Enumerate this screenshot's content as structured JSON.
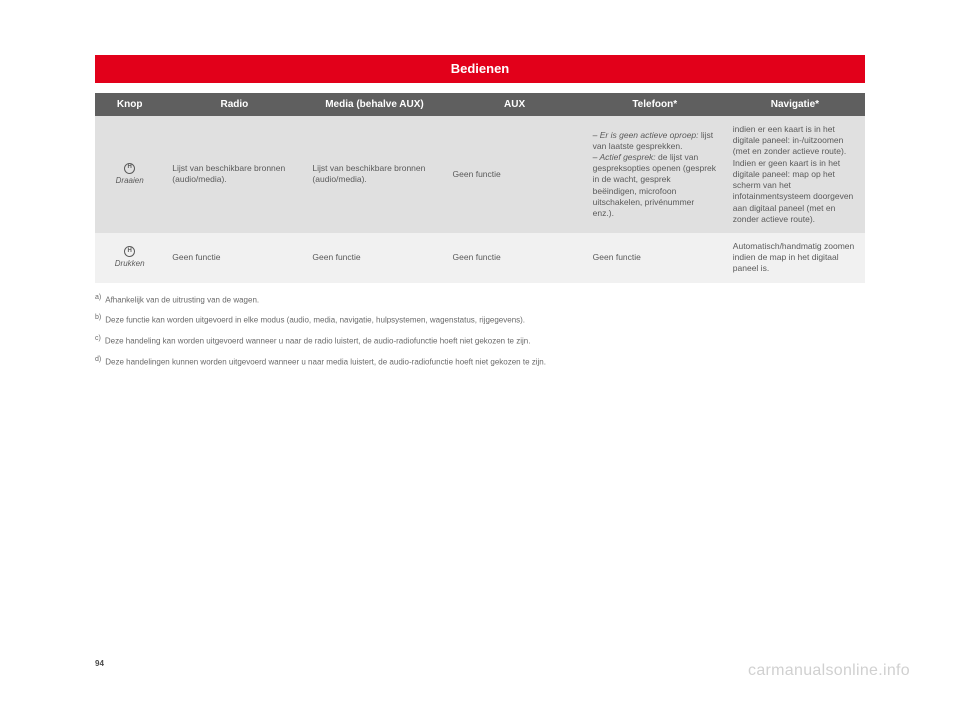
{
  "banner": {
    "title": "Bedienen"
  },
  "table": {
    "headers": {
      "knop": "Knop",
      "radio": "Radio",
      "media": "Media (behalve AUX)",
      "aux": "AUX",
      "telefoon": "Telefoon*",
      "navigatie": "Navigatie*"
    },
    "rows": [
      {
        "knop_action": "Draaien",
        "radio": "Lijst van beschikbare bronnen (audio/media).",
        "media": "Lijst van beschikbare bronnen (audio/media).",
        "aux": "Geen functie",
        "telefoon_line1": "– Er is geen actieve oproep:",
        "telefoon_line2": "lijst van laatste gesprekken.",
        "telefoon_line3": "– Actief gesprek:",
        "telefoon_line4": " de lijst van gespreksopties openen (gesprek in de wacht, gesprek beëindigen, microfoon uitschakelen, privénummer enz.).",
        "navigatie": "indien er een kaart is in het digitale paneel: in-/uitzoomen (met en zonder actieve route).\nIndien er geen kaart is in het digitale paneel: map op het scherm van het infotainmentsysteem doorgeven aan digitaal paneel (met en zonder actieve route)."
      },
      {
        "knop_action": "Drukken",
        "radio": "Geen functie",
        "media": "Geen functie",
        "aux": "Geen functie",
        "telefoon": "Geen functie",
        "navigatie": "Automatisch/handmatig zoomen indien de map in het digitaal paneel is."
      }
    ]
  },
  "footnotes": {
    "a": "Afhankelijk van de uitrusting van de wagen.",
    "b": "Deze functie kan worden uitgevoerd in elke modus (audio, media, navigatie, hulpsystemen, wagenstatus, rijgegevens).",
    "c": "Deze handeling kan worden uitgevoerd wanneer u naar de radio luistert, de audio-radiofunctie hoeft niet gekozen te zijn.",
    "d": "Deze handelingen kunnen worden uitgevoerd wanneer u naar media luistert, de audio-radiofunctie hoeft niet gekozen te zijn."
  },
  "footnote_markers": {
    "a": "a)",
    "b": "b)",
    "c": "c)",
    "d": "d)"
  },
  "page_number": "94",
  "watermark": "carmanualsonline.info",
  "colors": {
    "banner_bg": "#e2001a",
    "header_bg": "#5f5f5f",
    "row_odd_bg": "#e0e0e0",
    "row_even_bg": "#f1f1f1",
    "text": "#5a5a5a"
  }
}
